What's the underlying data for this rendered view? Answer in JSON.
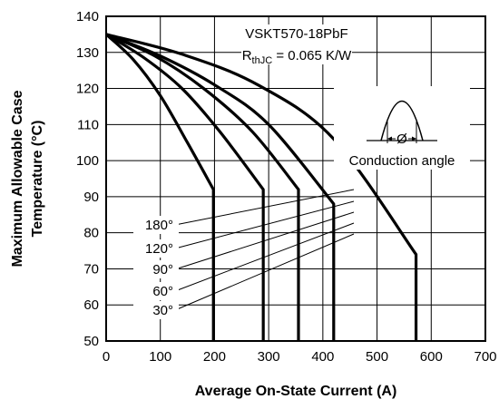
{
  "chart_data": {
    "type": "line",
    "title": "",
    "device_label": "VSKT570-18PbF",
    "rth_label": {
      "main": "R",
      "sub": "thJC",
      "rest": " = 0.065 K/W"
    },
    "xlabel": "Average On-State Current (A)",
    "ylabel_line1": "Maximum Allowable Case",
    "ylabel_line2": "Temperature (°C)",
    "xlim": [
      0,
      700
    ],
    "ylim": [
      50,
      140
    ],
    "xticks": [
      0,
      100,
      200,
      300,
      400,
      500,
      600,
      700
    ],
    "yticks": [
      50,
      60,
      70,
      80,
      90,
      100,
      110,
      120,
      130,
      140
    ],
    "grid": true,
    "inset": {
      "caption": "Conduction angle",
      "symbol": "Ø"
    },
    "series": [
      {
        "name": "30°",
        "x": [
          0,
          50,
          100,
          150,
          198,
          198
        ],
        "y": [
          135,
          128,
          118,
          105,
          92,
          50
        ]
      },
      {
        "name": "60°",
        "x": [
          0,
          70,
          140,
          210,
          290,
          290
        ],
        "y": [
          135,
          128.5,
          120,
          108,
          92,
          50
        ]
      },
      {
        "name": "90°",
        "x": [
          0,
          90,
          180,
          270,
          355,
          355
        ],
        "y": [
          135,
          129,
          120,
          108,
          92,
          50
        ]
      },
      {
        "name": "120°",
        "x": [
          0,
          100,
          200,
          300,
          420,
          420
        ],
        "y": [
          135,
          129,
          121,
          110,
          88,
          50
        ]
      },
      {
        "name": "180°",
        "x": [
          0,
          140,
          280,
          420,
          572,
          572
        ],
        "y": [
          135,
          129.5,
          121,
          106,
          74,
          50
        ]
      }
    ],
    "label_order": [
      "180°",
      "120°",
      "90°",
      "60°",
      "30°"
    ]
  }
}
